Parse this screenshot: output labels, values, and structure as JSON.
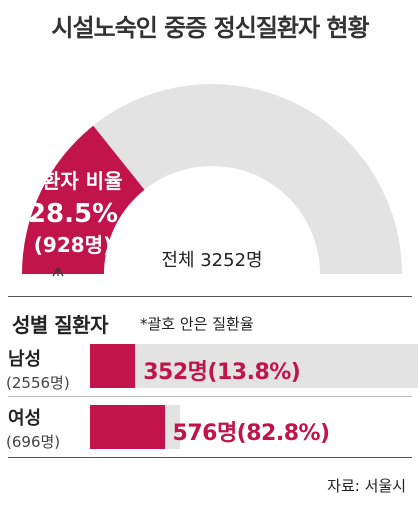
{
  "title": "시설노숙인 중증 정신질환자 현황",
  "chart_data": [
    {
      "type": "pie",
      "subtype": "half-donut",
      "total_label": "전체 3252명",
      "total": 3252,
      "highlight": {
        "label": "질환자 비율",
        "percent_label": "28.5%",
        "count_label": "(928명)",
        "fraction": 0.285
      },
      "colors": {
        "highlight": "#c0144a",
        "rest": "#e3e3e3"
      }
    },
    {
      "type": "bar",
      "title": "성별 질환자",
      "note": "*괄호 안은 질환율",
      "categories": [
        "남성",
        "여성"
      ],
      "category_sub": [
        "(2556명)",
        "(696명)"
      ],
      "values": [
        352,
        576
      ],
      "rates": [
        13.8,
        82.8
      ],
      "value_labels": [
        "352명(13.8%)",
        "576명(82.8%)"
      ],
      "colors": {
        "fill": "#c0144a",
        "track": "#e3e3e3"
      }
    }
  ],
  "source": "자료: 서울시"
}
